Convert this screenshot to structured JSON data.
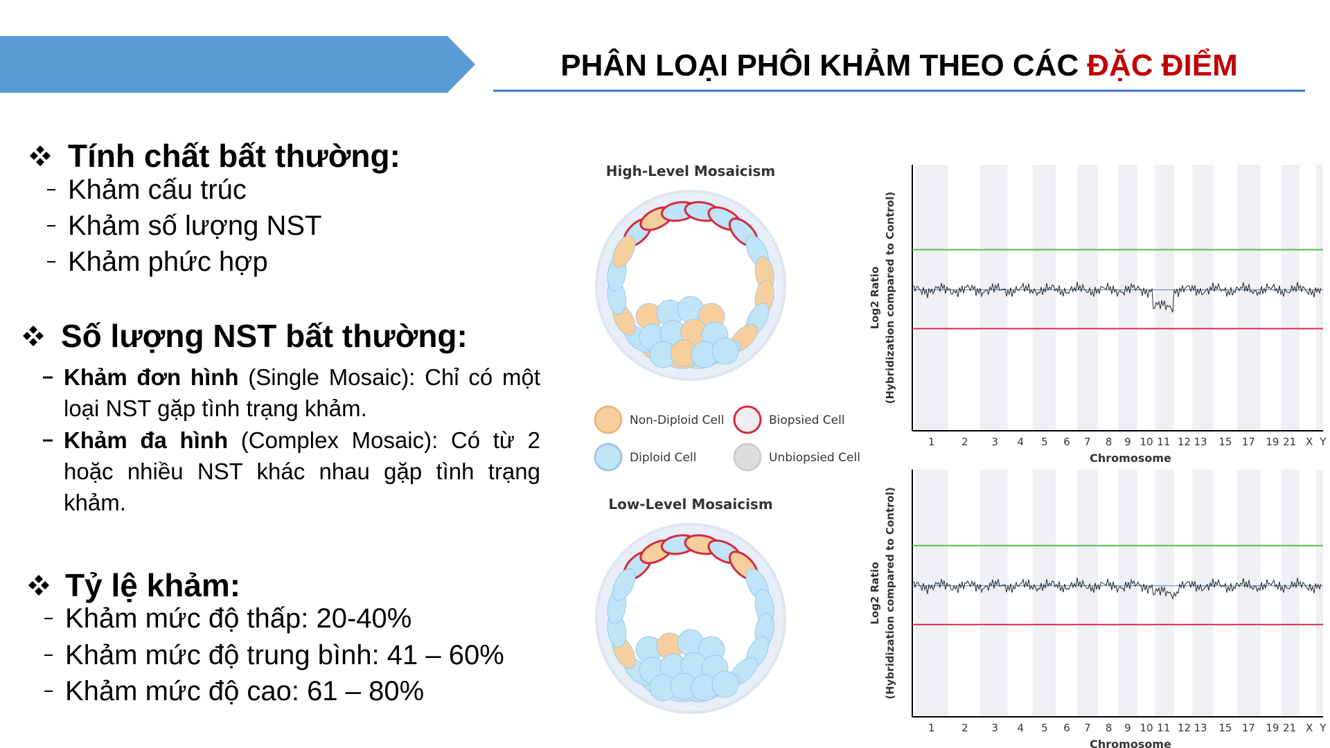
{
  "header": {
    "title": "PHÂN LOẠI PHÔI KHẢM THEO CÁC",
    "title_highlight": "ĐẶC ĐIỂM"
  },
  "sections": [
    {
      "heading": "Tính chất bất thường:",
      "items": [
        "Khảm cấu trúc",
        "Khảm số lượng NST",
        "Khảm phức hợp"
      ]
    },
    {
      "heading": "Số lượng NST bất thường:",
      "items": [
        {
          "bold": "Khảm đơn hình",
          "text": "(Single Mosaic): Chỉ có một loại NST gặp tình trạng khảm."
        },
        {
          "bold": "Khảm đa hình",
          "text": "(Complex Mosaic): Có từ 2 hoặc nhiều NST khác nhau gặp tình trạng khảm."
        }
      ]
    },
    {
      "heading": "Tỷ lệ khảm:",
      "items": [
        "Khảm mức độ thấp: 20-40%",
        "Khảm mức độ trung bình: 41 – 60%",
        "Khảm mức độ cao: 61 – 80%"
      ]
    }
  ],
  "figure": {
    "panels": [
      {
        "title": "High-Level Mosaicism"
      },
      {
        "title": "Low-Level Mosaicism"
      }
    ],
    "legend": [
      "Non-Diploid Cell",
      "Biopsied Cell",
      "Diploid Cell",
      "Unbiopsied Cell"
    ],
    "plot": {
      "ylabel": "Log2 Ratio",
      "ylabel_sub": "(Hybridization compared to Control)",
      "xlabel": "Chromosome",
      "chromosomes": [
        "1",
        "2",
        "3",
        "4",
        "5",
        "6",
        "7",
        "8",
        "9",
        "10",
        "11",
        "12",
        "13",
        "15",
        "17",
        "19",
        "21",
        "X",
        "Y"
      ]
    }
  }
}
